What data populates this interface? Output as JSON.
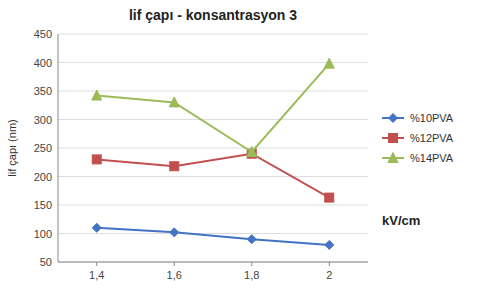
{
  "chart_data": {
    "type": "line",
    "title": "lif çapı - konsantrasyon 3",
    "xlabel": "kV/cm",
    "ylabel": "lif çapı (nm)",
    "x": [
      1.4,
      1.6,
      1.8,
      2.0
    ],
    "series": [
      {
        "name": "%10PVA",
        "color": "#4472C4",
        "marker": "diamond",
        "values": [
          110,
          102,
          90,
          80
        ]
      },
      {
        "name": "%12PVA",
        "color": "#C0504D",
        "marker": "square",
        "values": [
          230,
          218,
          240,
          163
        ]
      },
      {
        "name": "%14PVA",
        "color": "#9BBB59",
        "marker": "triangle",
        "values": [
          342,
          330,
          243,
          398
        ]
      }
    ],
    "xlim": [
      1.3,
      2.1
    ],
    "xticks": [
      {
        "value": 1.4,
        "label": "1,4"
      },
      {
        "value": 1.6,
        "label": "1,6"
      },
      {
        "value": 1.8,
        "label": "1,8"
      },
      2
    ],
    "ylim": [
      50,
      450
    ],
    "yticks": [
      50,
      100,
      150,
      200,
      250,
      300,
      350,
      400,
      450
    ],
    "grid": true,
    "legend": "right"
  }
}
